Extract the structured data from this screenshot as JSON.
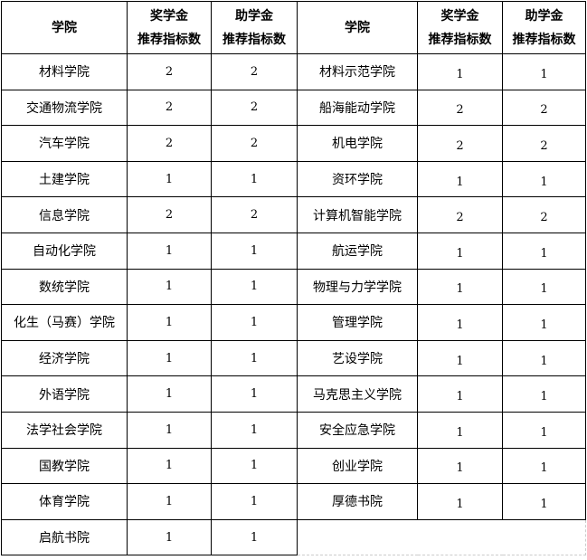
{
  "header": {
    "college": "学院",
    "scholarship_line1": "奖学金",
    "scholarship_line2": "推荐指标数",
    "grant_line1": "助学金",
    "grant_line2": "推荐指标数"
  },
  "left_rows": [
    {
      "college": "材料学院",
      "scholarship": "2",
      "grant": "2"
    },
    {
      "college": "交通物流学院",
      "scholarship": "2",
      "grant": "2"
    },
    {
      "college": "汽车学院",
      "scholarship": "2",
      "grant": "2"
    },
    {
      "college": "土建学院",
      "scholarship": "1",
      "grant": "1"
    },
    {
      "college": "信息学院",
      "scholarship": "2",
      "grant": "2"
    },
    {
      "college": "自动化学院",
      "scholarship": "1",
      "grant": "1"
    },
    {
      "college": "数统学院",
      "scholarship": "1",
      "grant": "1"
    },
    {
      "college": "化生（马赛）学院",
      "scholarship": "1",
      "grant": "1"
    },
    {
      "college": "经济学院",
      "scholarship": "1",
      "grant": "1"
    },
    {
      "college": "外语学院",
      "scholarship": "1",
      "grant": "1"
    },
    {
      "college": "法学社会学院",
      "scholarship": "1",
      "grant": "1"
    },
    {
      "college": "国教学院",
      "scholarship": "1",
      "grant": "1"
    },
    {
      "college": "体育学院",
      "scholarship": "1",
      "grant": "1"
    },
    {
      "college": "启航书院",
      "scholarship": "1",
      "grant": "1"
    }
  ],
  "right_rows": [
    {
      "college": "材料示范学院",
      "scholarship": "1",
      "grant": "1"
    },
    {
      "college": "船海能动学院",
      "scholarship": "2",
      "grant": "2"
    },
    {
      "college": "机电学院",
      "scholarship": "2",
      "grant": "2"
    },
    {
      "college": "资环学院",
      "scholarship": "1",
      "grant": "1"
    },
    {
      "college": "计算机智能学院",
      "scholarship": "2",
      "grant": "2"
    },
    {
      "college": "航运学院",
      "scholarship": "1",
      "grant": "1"
    },
    {
      "college": "物理与力学学院",
      "scholarship": "1",
      "grant": "1"
    },
    {
      "college": "管理学院",
      "scholarship": "1",
      "grant": "1"
    },
    {
      "college": "艺设学院",
      "scholarship": "1",
      "grant": "1"
    },
    {
      "college": "马克思主义学院",
      "scholarship": "1",
      "grant": "1"
    },
    {
      "college": "安全应急学院",
      "scholarship": "1",
      "grant": "1"
    },
    {
      "college": "创业学院",
      "scholarship": "1",
      "grant": "1"
    },
    {
      "college": "厚德书院",
      "scholarship": "1",
      "grant": "1"
    }
  ]
}
